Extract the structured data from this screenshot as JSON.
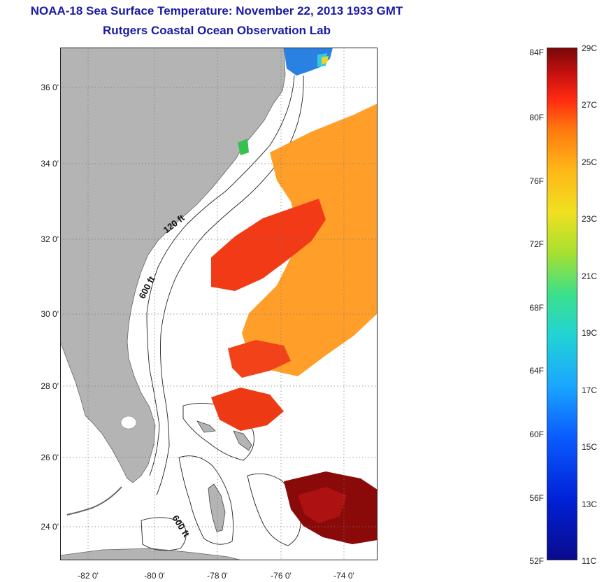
{
  "title": "NOAA-18 Sea Surface Temperature:  November 22, 2013 1933 GMT",
  "subtitle": "Rutgers Coastal Ocean Observation Lab",
  "map": {
    "lat_labels": [
      "36 0'",
      "34 0'",
      "32 0'",
      "30 0'",
      "28 0'",
      "26 0'",
      "24 0'"
    ],
    "lon_labels": [
      "-82 0'",
      "-80 0'",
      "-78 0'",
      "-76 0'",
      "-74 0'"
    ],
    "contours": {
      "c120": "120 ft",
      "c600a": "600 ft",
      "c600b": "600 ft"
    },
    "colors": {
      "land": "#b4b4b4",
      "ocean": "#ffffff",
      "grid": "#777777"
    }
  },
  "colorbar": {
    "fahrenheit": [
      "84F",
      "80F",
      "76F",
      "72F",
      "68F",
      "64F",
      "60F",
      "56F",
      "52F"
    ],
    "celsius": [
      "29C",
      "27C",
      "25C",
      "23C",
      "21C",
      "19C",
      "17C",
      "15C",
      "13C",
      "11C"
    ],
    "range_c": [
      11,
      29
    ],
    "colors": [
      "#0a0a8c",
      "#0a5cff",
      "#22d4d4",
      "#a8e030",
      "#f0e020",
      "#ff7a10",
      "#ff2a10",
      "#7a0808"
    ]
  }
}
